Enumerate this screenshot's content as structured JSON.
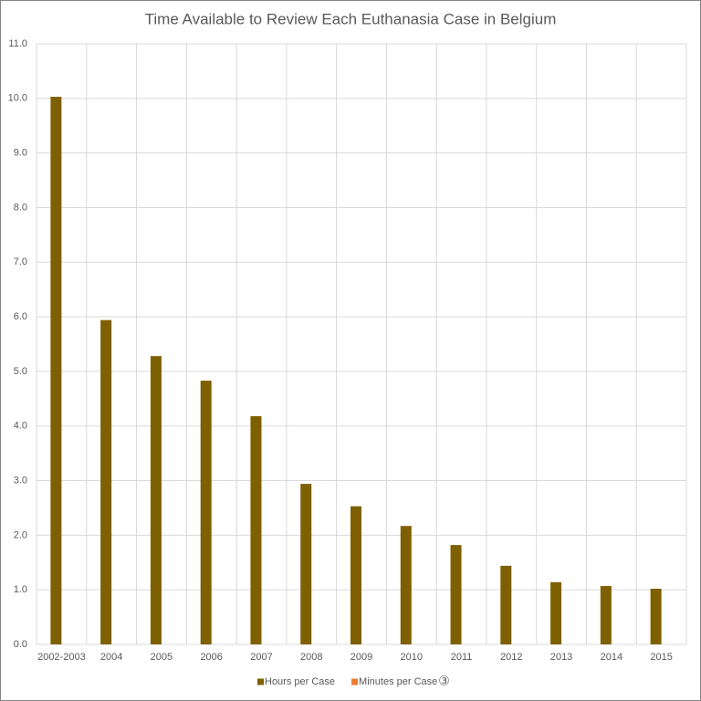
{
  "chart_data": {
    "type": "bar",
    "title": "Time Available to Review Each Euthanasia Case in Belgium",
    "categories": [
      "2002-2003",
      "2004",
      "2005",
      "2006",
      "2007",
      "2008",
      "2009",
      "2010",
      "2011",
      "2012",
      "2013",
      "2014",
      "2015"
    ],
    "series": [
      {
        "name": "Hours per Case",
        "color": "#7f6000",
        "values": [
          10.03,
          5.94,
          5.28,
          4.83,
          4.18,
          2.94,
          2.53,
          2.17,
          1.82,
          1.44,
          1.14,
          1.07,
          1.02
        ]
      },
      {
        "name": "Minutes per Case",
        "color": "#ed7d31",
        "values": [
          null,
          null,
          null,
          null,
          null,
          null,
          null,
          null,
          null,
          null,
          null,
          null,
          null
        ]
      }
    ],
    "legend_note": "③",
    "ylim": [
      0,
      11
    ],
    "yticks": [
      {
        "value": 0,
        "label": "0.0"
      },
      {
        "value": 1,
        "label": "1.0"
      },
      {
        "value": 2,
        "label": "2.0"
      },
      {
        "value": 3,
        "label": "3.0"
      },
      {
        "value": 4,
        "label": "4.0"
      },
      {
        "value": 5,
        "label": "5.0"
      },
      {
        "value": 6,
        "label": "6.0"
      },
      {
        "value": 7,
        "label": "7.0"
      },
      {
        "value": 8,
        "label": "8.0"
      },
      {
        "value": 9,
        "label": "9.0"
      },
      {
        "value": 10,
        "label": "10.0"
      },
      {
        "value": 11,
        "label": "11.0"
      }
    ],
    "grid": true,
    "legend": "bottom"
  }
}
